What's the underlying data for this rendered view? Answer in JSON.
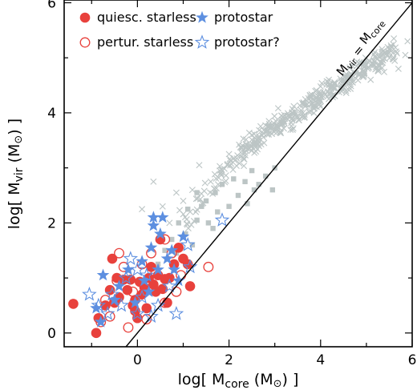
{
  "chart_data": {
    "type": "scatter",
    "xlabel_parts": {
      "pre": "log[ M",
      "sub": "core",
      "mid": " (M",
      "sun": "⊙",
      "post": ") ]"
    },
    "ylabel_parts": {
      "pre": "log[ M",
      "sub": "vir",
      "mid": " (M",
      "sun": "⊙",
      "post": ") ]"
    },
    "xlim": [
      -1.6,
      6.0
    ],
    "ylim": [
      -0.25,
      6.05
    ],
    "xticks": [
      0,
      2,
      4,
      6
    ],
    "yticks": [
      0,
      2,
      4,
      6
    ],
    "grid": false,
    "legend_position": "top-left",
    "colors": {
      "red": "#e8413c",
      "blue": "#5d8fe0",
      "gray": "#bcc5c5"
    },
    "reference_line": {
      "label_parts": {
        "a": "M",
        "a_sub": "vir",
        "eq": " = ",
        "b": "M",
        "b_sub": "core"
      },
      "from": [
        -0.25,
        -0.25
      ],
      "to": [
        6.0,
        6.0
      ]
    },
    "legend": [
      {
        "label": "quiesc. starless",
        "marker": "circle-filled",
        "color": "#e8413c"
      },
      {
        "label": "pertur. starless",
        "marker": "circle-open",
        "color": "#e8413c"
      },
      {
        "label": "protostar",
        "marker": "star-filled",
        "color": "#5d8fe0"
      },
      {
        "label": "protostar?",
        "marker": "star-open",
        "color": "#5d8fe0"
      }
    ],
    "series": [
      {
        "name": "quiesc. starless",
        "marker": "circle-filled",
        "color": "#e8413c",
        "points": [
          [
            -1.4,
            0.53
          ],
          [
            -0.85,
            0.27
          ],
          [
            -0.9,
            0.0
          ],
          [
            -0.7,
            0.5
          ],
          [
            -0.6,
            0.78
          ],
          [
            -0.5,
            0.55
          ],
          [
            -0.4,
            0.65
          ],
          [
            -0.3,
            0.97
          ],
          [
            -0.22,
            0.78
          ],
          [
            -0.15,
            0.97
          ],
          [
            -0.1,
            0.5
          ],
          [
            -0.05,
            0.4
          ],
          [
            0.0,
            0.27
          ],
          [
            0.05,
            0.93
          ],
          [
            0.1,
            0.7
          ],
          [
            0.15,
            0.83
          ],
          [
            -0.55,
            1.35
          ],
          [
            -0.45,
            1.0
          ],
          [
            0.25,
            1.0
          ],
          [
            0.3,
            1.2
          ],
          [
            0.35,
            0.88
          ],
          [
            0.45,
            1.05
          ],
          [
            0.55,
            0.8
          ],
          [
            0.6,
            0.98
          ],
          [
            0.7,
            1.0
          ],
          [
            0.8,
            1.25
          ],
          [
            0.9,
            1.55
          ],
          [
            1.0,
            1.35
          ],
          [
            1.1,
            1.25
          ],
          [
            1.15,
            0.85
          ],
          [
            0.5,
            1.7
          ],
          [
            -0.05,
            0.6
          ],
          [
            0.2,
            0.45
          ],
          [
            0.4,
            0.75
          ],
          [
            0.65,
            0.55
          ]
        ]
      },
      {
        "name": "pertur. starless",
        "marker": "circle-open",
        "color": "#e8413c",
        "points": [
          [
            -0.8,
            0.2
          ],
          [
            -0.6,
            0.3
          ],
          [
            -0.2,
            0.1
          ],
          [
            -0.7,
            0.6
          ],
          [
            -0.45,
            0.95
          ],
          [
            -0.3,
            1.2
          ],
          [
            -0.4,
            1.45
          ],
          [
            0.1,
            1.25
          ],
          [
            0.3,
            1.45
          ],
          [
            0.4,
            1.1
          ],
          [
            0.6,
            1.7
          ],
          [
            0.75,
            1.45
          ],
          [
            0.95,
            1.05
          ],
          [
            1.55,
            1.2
          ],
          [
            0.6,
            0.55
          ],
          [
            -0.1,
            0.75
          ],
          [
            0.2,
            0.25
          ],
          [
            0.85,
            0.75
          ]
        ]
      },
      {
        "name": "protostar",
        "marker": "star-filled",
        "color": "#5d8fe0",
        "points": [
          [
            -0.8,
            0.2
          ],
          [
            -0.9,
            0.45
          ],
          [
            -0.75,
            1.05
          ],
          [
            -0.5,
            0.6
          ],
          [
            -0.4,
            0.85
          ],
          [
            -0.2,
            1.15
          ],
          [
            0.1,
            1.3
          ],
          [
            0.25,
            0.75
          ],
          [
            0.3,
            1.55
          ],
          [
            0.35,
            1.95
          ],
          [
            0.35,
            2.1
          ],
          [
            0.5,
            1.8
          ],
          [
            0.55,
            2.1
          ],
          [
            0.65,
            1.35
          ],
          [
            0.75,
            1.5
          ],
          [
            0.8,
            1.15
          ],
          [
            0.9,
            0.95
          ],
          [
            1.0,
            1.75
          ],
          [
            0.45,
            1.15
          ],
          [
            0.15,
            0.95
          ],
          [
            -0.05,
            0.55
          ]
        ]
      },
      {
        "name": "protostar?",
        "marker": "star-open",
        "color": "#5d8fe0",
        "points": [
          [
            -1.05,
            0.7
          ],
          [
            -0.85,
            0.5
          ],
          [
            -0.65,
            0.35
          ],
          [
            -0.55,
            0.7
          ],
          [
            -0.35,
            0.5
          ],
          [
            -0.25,
            1.0
          ],
          [
            -0.15,
            1.35
          ],
          [
            0.0,
            1.15
          ],
          [
            0.1,
            0.65
          ],
          [
            0.2,
            1.05
          ],
          [
            0.45,
            0.5
          ],
          [
            0.7,
            0.85
          ],
          [
            0.85,
            0.35
          ],
          [
            1.1,
            1.6
          ],
          [
            1.15,
            1.2
          ],
          [
            1.85,
            2.05
          ],
          [
            0.0,
            0.35
          ],
          [
            0.3,
            0.3
          ]
        ]
      },
      {
        "name": "",
        "marker": "square-filled",
        "color": "#bcc5c5",
        "points": [
          [
            0.45,
            1.25
          ],
          [
            0.6,
            1.5
          ],
          [
            0.75,
            1.7
          ],
          [
            0.9,
            2.0
          ],
          [
            1.05,
            1.8
          ],
          [
            1.1,
            2.25
          ],
          [
            1.3,
            2.05
          ],
          [
            1.5,
            2.4
          ],
          [
            1.55,
            2.0
          ],
          [
            1.7,
            2.55
          ],
          [
            1.75,
            2.2
          ],
          [
            1.85,
            2.7
          ],
          [
            2.0,
            2.3
          ],
          [
            2.1,
            2.8
          ],
          [
            2.2,
            2.5
          ],
          [
            2.35,
            2.75
          ],
          [
            2.5,
            2.95
          ],
          [
            2.65,
            2.7
          ],
          [
            2.8,
            2.85
          ],
          [
            3.0,
            3.0
          ],
          [
            2.4,
            2.35
          ],
          [
            1.65,
            1.9
          ],
          [
            1.4,
            2.3
          ],
          [
            1.2,
            1.6
          ],
          [
            0.85,
            1.45
          ],
          [
            2.95,
            2.6
          ],
          [
            1.3,
            2.55
          ],
          [
            2.55,
            2.6
          ]
        ]
      }
    ],
    "cloud": {
      "name": "",
      "marker": "cross",
      "color": "#bcc5c5",
      "note_segments": [
        [
          1.0,
          2.0,
          2.3,
          3.3,
          60
        ],
        [
          2.3,
          3.3,
          3.8,
          4.2,
          160
        ],
        [
          3.8,
          4.2,
          5.6,
          5.1,
          220
        ]
      ],
      "extra_points": [
        [
          0.35,
          2.75
        ],
        [
          0.85,
          2.55
        ],
        [
          0.1,
          2.25
        ],
        [
          0.55,
          2.3
        ],
        [
          1.2,
          2.6
        ],
        [
          1.6,
          2.75
        ],
        [
          1.35,
          3.05
        ],
        [
          2.0,
          3.25
        ],
        [
          1.8,
          2.95
        ],
        [
          0.7,
          2.0
        ],
        [
          1.0,
          2.4
        ],
        [
          2.5,
          3.6
        ],
        [
          5.85,
          5.05
        ],
        [
          5.7,
          4.8
        ],
        [
          5.6,
          5.35
        ],
        [
          5.9,
          5.3
        ]
      ]
    }
  }
}
